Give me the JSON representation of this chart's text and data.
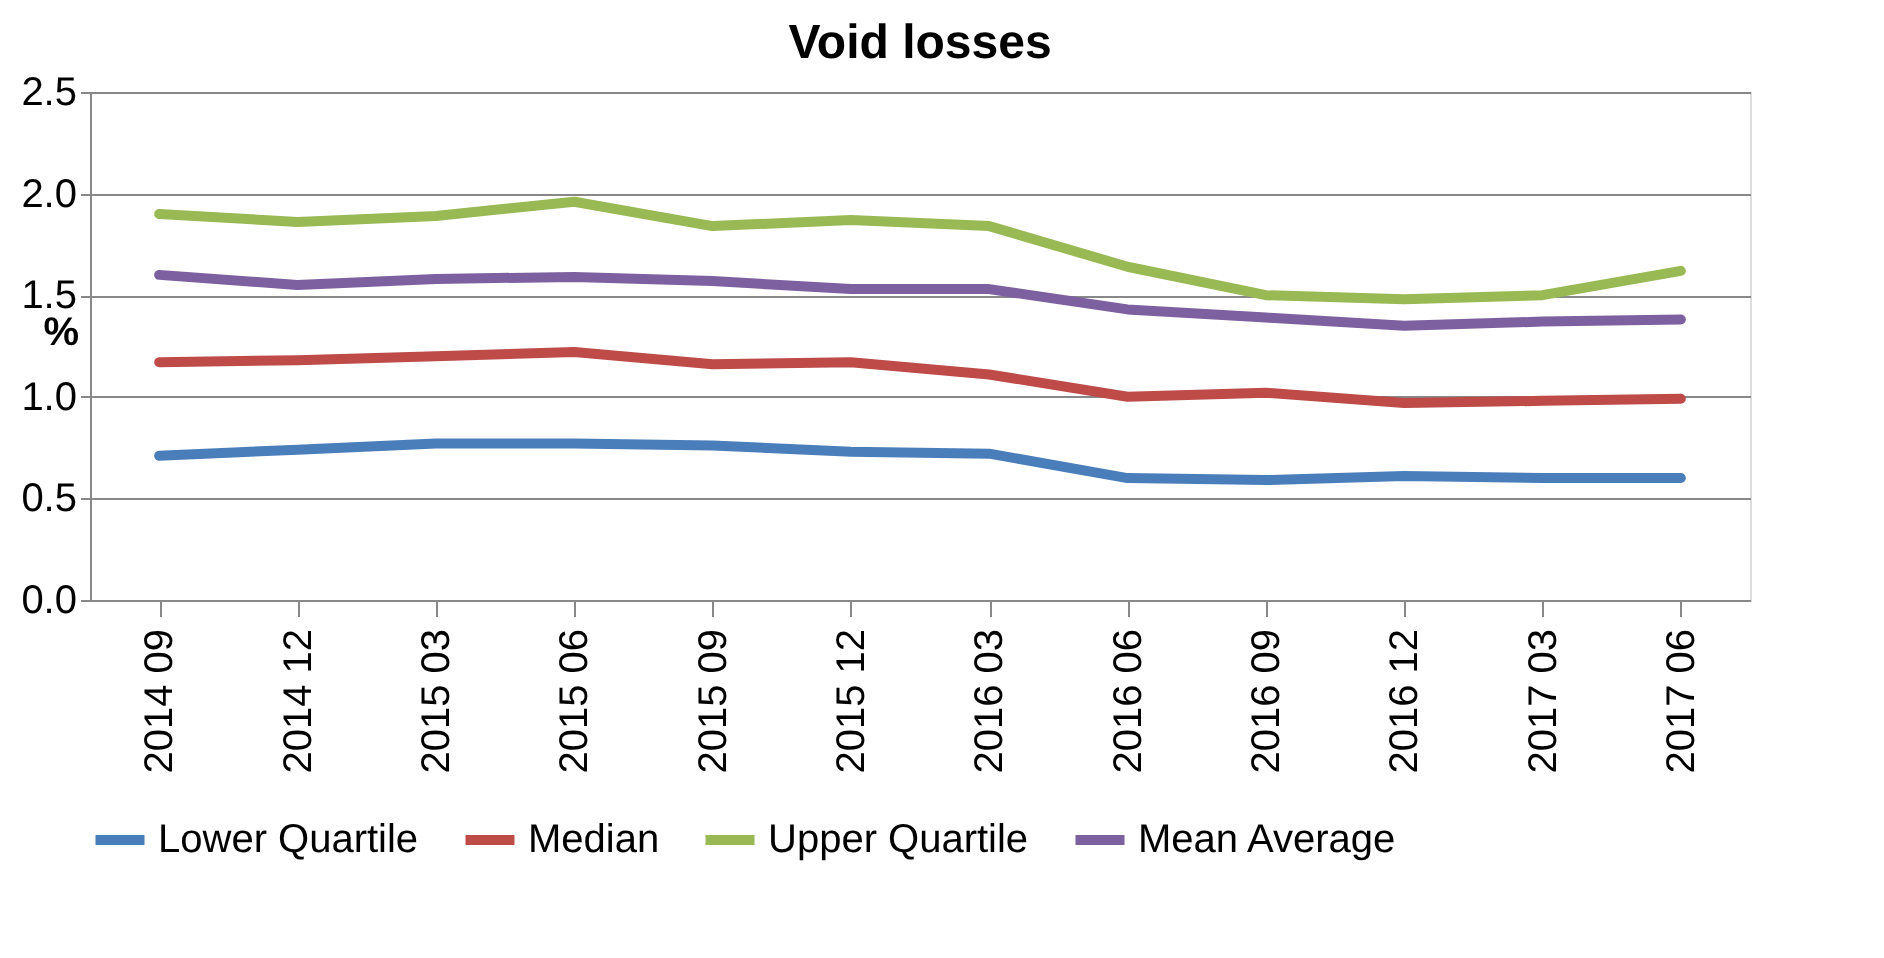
{
  "chart_data": {
    "type": "line",
    "title": "Void losses",
    "ylabel": "%",
    "categories": [
      "2014 09",
      "2014 12",
      "2015 03",
      "2015 06",
      "2015 09",
      "2015 12",
      "2016 03",
      "2016 06",
      "2016 09",
      "2016 12",
      "2017 03",
      "2017 06"
    ],
    "series": [
      {
        "name": "Lower Quartile",
        "color": "#4a7ebb",
        "values": [
          0.71,
          0.74,
          0.77,
          0.77,
          0.76,
          0.73,
          0.72,
          0.6,
          0.59,
          0.61,
          0.6,
          0.6
        ]
      },
      {
        "name": "Median",
        "color": "#be4b48",
        "values": [
          1.17,
          1.18,
          1.2,
          1.22,
          1.16,
          1.17,
          1.11,
          1.0,
          1.02,
          0.97,
          0.98,
          0.99
        ]
      },
      {
        "name": "Upper Quartile",
        "color": "#98b954",
        "values": [
          1.9,
          1.86,
          1.89,
          1.96,
          1.84,
          1.87,
          1.84,
          1.64,
          1.5,
          1.48,
          1.5,
          1.62
        ]
      },
      {
        "name": "Mean Average",
        "color": "#7d60a0",
        "values": [
          1.6,
          1.55,
          1.58,
          1.59,
          1.57,
          1.53,
          1.53,
          1.43,
          1.39,
          1.35,
          1.37,
          1.38
        ]
      }
    ],
    "ylim": [
      0,
      2.5
    ],
    "yticks": [
      {
        "value": 0,
        "label": "0.0"
      },
      0.5,
      {
        "value": 1,
        "label": "1.0"
      },
      1.5,
      {
        "value": 2,
        "label": "2.0"
      },
      2.5
    ],
    "grid": "y",
    "legend": "bottom",
    "marker": "none",
    "line_style": "solid"
  }
}
